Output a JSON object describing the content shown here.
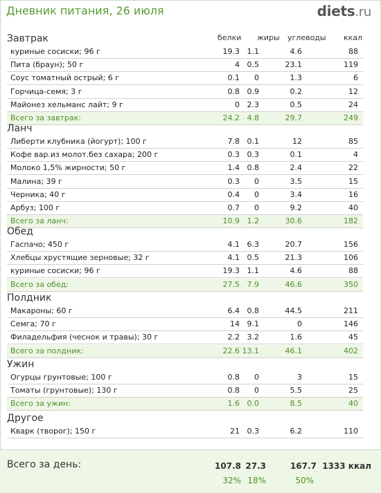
{
  "title": "Дневник питания, 26 июля",
  "logo": {
    "main": "diets",
    "suffix": ".ru"
  },
  "columns": {
    "protein": "белки",
    "fat": "жиры",
    "carbs": "углеводы",
    "kcal": "ккал"
  },
  "sections": [
    {
      "title": "Завтрак",
      "rows": [
        {
          "name": "куриные сосиски; 96 г",
          "p": "19.3",
          "f": "1.1",
          "c": "4.6",
          "k": "88"
        },
        {
          "name": "Пита (браун); 50 г",
          "p": "4",
          "f": "0.5",
          "c": "23.1",
          "k": "119"
        },
        {
          "name": "Соус томатный острый; 6 г",
          "p": "0.1",
          "f": "0",
          "c": "1.3",
          "k": "6"
        },
        {
          "name": "Горчица-семя; 3 г",
          "p": "0.8",
          "f": "0.9",
          "c": "0.2",
          "k": "12"
        },
        {
          "name": "Майонез хельманс лайт; 9 г",
          "p": "0",
          "f": "2.3",
          "c": "0.5",
          "k": "24"
        }
      ],
      "total": {
        "name": "Всего за завтрак:",
        "p": "24.2",
        "f": "4.8",
        "c": "29.7",
        "k": "249"
      }
    },
    {
      "title": "Ланч",
      "rows": [
        {
          "name": "Либерти клубника (йогурт); 100 г",
          "p": "7.8",
          "f": "0.1",
          "c": "12",
          "k": "85"
        },
        {
          "name": "Кофе вар.из молот.без сахара; 200 г",
          "p": "0.3",
          "f": "0.3",
          "c": "0.1",
          "k": "4"
        },
        {
          "name": "Молоко 1,5% жирности; 50 г",
          "p": "1.4",
          "f": "0.8",
          "c": "2.4",
          "k": "22"
        },
        {
          "name": "Малина; 39 г",
          "p": "0.3",
          "f": "0",
          "c": "3.5",
          "k": "15"
        },
        {
          "name": "Черника; 40 г",
          "p": "0.4",
          "f": "0",
          "c": "3.4",
          "k": "16"
        },
        {
          "name": "Арбуз; 100 г",
          "p": "0.7",
          "f": "0",
          "c": "9.2",
          "k": "40"
        }
      ],
      "total": {
        "name": "Всего за ланч:",
        "p": "10.9",
        "f": "1.2",
        "c": "30.6",
        "k": "182"
      }
    },
    {
      "title": "Обед",
      "rows": [
        {
          "name": "Гаспачо; 450 г",
          "p": "4.1",
          "f": "6.3",
          "c": "20.7",
          "k": "156"
        },
        {
          "name": "Хлебцы хрустящие зерновые; 32 г",
          "p": "4.1",
          "f": "0.5",
          "c": "21.3",
          "k": "106"
        },
        {
          "name": "куриные сосиски; 96 г",
          "p": "19.3",
          "f": "1.1",
          "c": "4.6",
          "k": "88"
        }
      ],
      "total": {
        "name": "Всего за обед:",
        "p": "27.5",
        "f": "7.9",
        "c": "46.6",
        "k": "350"
      }
    },
    {
      "title": "Полдник",
      "rows": [
        {
          "name": "Макароны; 60 г",
          "p": "6.4",
          "f": "0.8",
          "c": "44.5",
          "k": "211"
        },
        {
          "name": "Семга; 70 г",
          "p": "14",
          "f": "9.1",
          "c": "0",
          "k": "146"
        },
        {
          "name": "Филадельфия (чеснок и травы); 30 г",
          "p": "2.2",
          "f": "3.2",
          "c": "1.6",
          "k": "45"
        }
      ],
      "total": {
        "name": "Всего за полдник:",
        "p": "22.6",
        "f": "13.1",
        "c": "46.1",
        "k": "402"
      }
    },
    {
      "title": "Ужин",
      "rows": [
        {
          "name": "Огурцы грунтовые; 100 г",
          "p": "0.8",
          "f": "0",
          "c": "3",
          "k": "15"
        },
        {
          "name": "Томаты (грунтовые); 130 г",
          "p": "0.8",
          "f": "0",
          "c": "5.5",
          "k": "25"
        }
      ],
      "total": {
        "name": "Всего за ужин:",
        "p": "1.6",
        "f": "0.0",
        "c": "8.5",
        "k": "40"
      }
    },
    {
      "title": "Другое",
      "rows": [
        {
          "name": "Кварк (творог); 150 г",
          "p": "21",
          "f": "0.3",
          "c": "6.2",
          "k": "110"
        }
      ]
    }
  ],
  "day": {
    "label": "Всего за день:",
    "p": "107.8",
    "f": "27.3",
    "c": "167.7",
    "k": "1333 ккал",
    "pp": "32%",
    "fp": "18%",
    "cp": "50%"
  }
}
